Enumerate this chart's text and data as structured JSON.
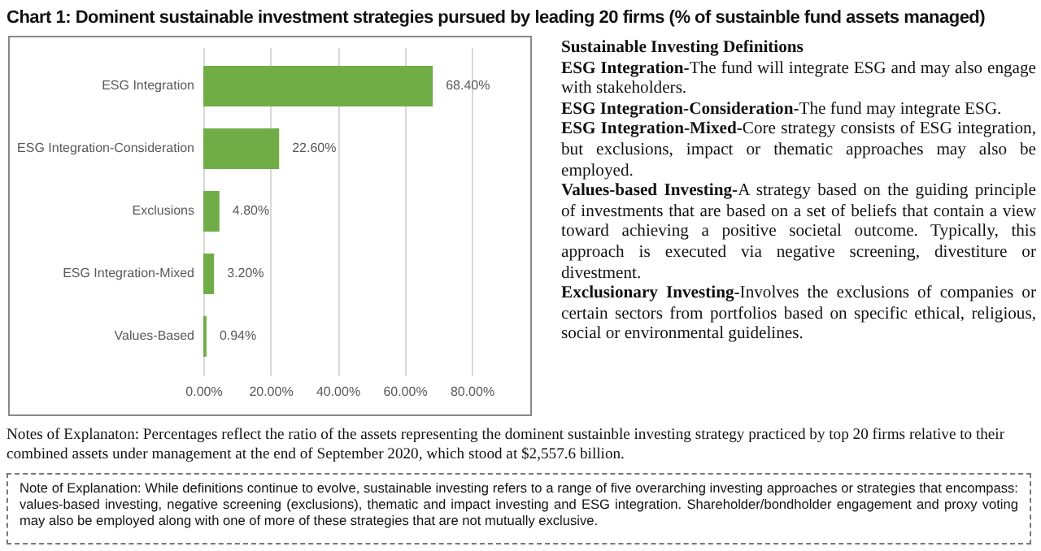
{
  "chart_data": {
    "type": "bar",
    "orientation": "horizontal",
    "title": "Chart 1:  Dominent sustainable investment strategies pursued by leading 20 firms (% of sustainble fund assets managed)",
    "categories": [
      "ESG Integration",
      "ESG Integration-Consideration",
      "Exclusions",
      "ESG Integration-Mixed",
      "Values-Based"
    ],
    "values": [
      68.4,
      22.6,
      4.8,
      3.2,
      0.94
    ],
    "value_labels": [
      "68.40%",
      "22.60%",
      "4.80%",
      "3.20%",
      "0.94%"
    ],
    "color": "#70ad47",
    "xlim": [
      0,
      80
    ],
    "xticks": [
      {
        "value": 0,
        "label": "0.00%"
      },
      {
        "value": 20,
        "label": "20.00%"
      },
      {
        "value": 40,
        "label": "40.00%"
      },
      {
        "value": 60,
        "label": "60.00%"
      },
      {
        "value": 80,
        "label": "80.00%"
      }
    ],
    "grid": "x",
    "annotations": [
      "Sustainable Investing Definitions",
      "ESG Integration-The fund will integrate ESG and may also engage with stakeholders.",
      "ESG Integration-Consideration-The fund may integrate ESG.",
      "ESG Integration-Mixed-Core strategy consists of ESG integration, but exclusions, impact or thematic approaches may also be employed.",
      "Values-based Investing-A strategy based on the guiding principle of investments that are based on a set of beliefs that contain a view toward achieving a positive societal outcome. Typically, this approach is executed via negative screening, divestiture or divestment.",
      "Exclusionary Investing-Involves the exclusions of companies or certain sectors from portfolios based on specific ethical, religious, social or environmental guidelines.",
      "Notes of Explanaton:  Percentages reflect the ratio of the assets representing the dominent sustainble investing strategy practiced by top 20 firms relative to their combined assets under management at the end of September 2020, which stood at $2,557.6 billion.",
      "Note of Explanation:  While definitions continue to evolve, sustainable investing refers to a range of five overarching investing approaches or strategies that encompass:  values-based investing, negative screening (exclusions), thematic and impact investing and ESG integration.  Shareholder/bondholder engagement and proxy voting may also be employed along with one of more of these strategies that are not mutually exclusive."
    ]
  }
}
